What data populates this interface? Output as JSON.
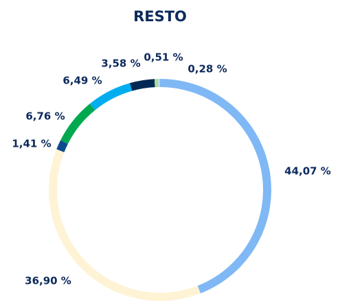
{
  "chart_data": {
    "type": "donut",
    "title": "RESTO",
    "categories": [
      null,
      null,
      null,
      null,
      null,
      null,
      null,
      null
    ],
    "values": [
      44.07,
      36.9,
      1.41,
      6.76,
      6.49,
      3.58,
      0.51,
      0.28
    ],
    "value_labels": [
      "44,07 %",
      "36,90 %",
      "1,41 %",
      "6,76 %",
      "6,49 %",
      "3,58 %",
      "0,51 %",
      "0,28 %"
    ],
    "colors": [
      "#7fb8f5",
      "#fff3d6",
      "#0d4a8f",
      "#00a94f",
      "#00aeef",
      "#002855",
      "#a8e08a",
      "#b8d4f0"
    ]
  }
}
